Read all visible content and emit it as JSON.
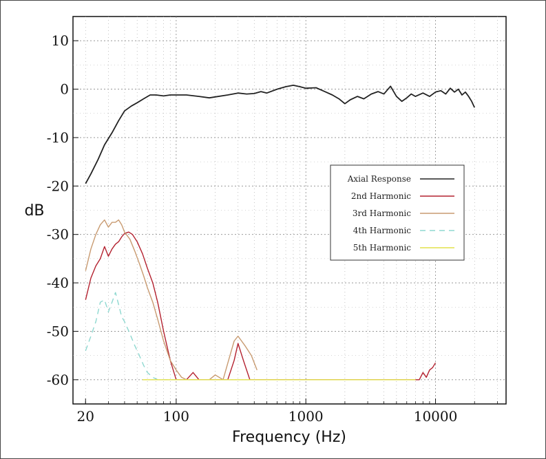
{
  "chart_data": {
    "type": "line",
    "title": "",
    "xlabel": "Frequency (Hz)",
    "ylabel": "dB",
    "x_scale": "log",
    "xlim": [
      16,
      35000
    ],
    "ylim": [
      -65,
      15
    ],
    "x_ticks": [
      20,
      100,
      1000,
      10000
    ],
    "x_tick_labels": [
      "20",
      "100",
      "1000",
      "10000"
    ],
    "y_ticks": [
      10,
      0,
      -10,
      -20,
      -30,
      -40,
      -50,
      -60
    ],
    "y_tick_labels": [
      "10",
      "0",
      "-10",
      "-20",
      "-30",
      "-40",
      "-50",
      "-60"
    ],
    "grid": true,
    "legend_position": "right",
    "series": [
      {
        "name": "Axial Response",
        "color": "#222222",
        "dash": "",
        "x": [
          20,
          22,
          25,
          28,
          32,
          36,
          40,
          45,
          50,
          56,
          63,
          70,
          80,
          90,
          100,
          120,
          150,
          180,
          200,
          250,
          300,
          350,
          400,
          450,
          500,
          600,
          700,
          800,
          900,
          1000,
          1200,
          1400,
          1600,
          1800,
          2000,
          2200,
          2500,
          2800,
          3200,
          3600,
          4000,
          4500,
          5000,
          5500,
          6000,
          6500,
          7000,
          8000,
          9000,
          10000,
          11000,
          12000,
          13000,
          14000,
          15000,
          16000,
          17000,
          18000,
          19000,
          20000
        ],
        "y": [
          -19.5,
          -17.5,
          -14.5,
          -11.5,
          -9,
          -6.5,
          -4.5,
          -3.5,
          -2.8,
          -2,
          -1.2,
          -1.2,
          -1.4,
          -1.2,
          -1.2,
          -1.2,
          -1.5,
          -1.8,
          -1.6,
          -1.2,
          -0.8,
          -1,
          -0.9,
          -0.5,
          -0.8,
          0,
          0.5,
          0.8,
          0.5,
          0.2,
          0.3,
          -0.5,
          -1.2,
          -2,
          -3,
          -2.2,
          -1.5,
          -2,
          -1,
          -0.5,
          -1,
          0.6,
          -1.5,
          -2.5,
          -1.8,
          -1,
          -1.5,
          -0.8,
          -1.5,
          -0.6,
          -0.3,
          -1,
          0.2,
          -0.6,
          0,
          -1.2,
          -0.6,
          -1.5,
          -2.5,
          -3.8
        ]
      },
      {
        "name": "2nd Harmonic",
        "color": "#b3202e",
        "dash": "",
        "x": [
          20,
          22,
          24,
          26,
          28,
          30,
          32,
          34,
          36,
          38,
          40,
          43,
          46,
          50,
          55,
          60,
          66,
          72,
          80,
          90,
          100,
          110,
          120,
          135,
          150,
          165,
          180,
          200,
          250,
          280,
          300,
          330,
          370,
          400,
          7500,
          8000,
          8500,
          9000,
          9500,
          10000
        ],
        "y": [
          -43.5,
          -39,
          -36.5,
          -35,
          -32.5,
          -34.5,
          -33,
          -32,
          -31.5,
          -30.5,
          -29.8,
          -29.5,
          -30,
          -31.5,
          -34,
          -37,
          -40,
          -44,
          -50,
          -56,
          -60,
          -60,
          -60,
          -58.5,
          -60,
          -60,
          -60,
          -60,
          -60,
          -56,
          -52.5,
          -56,
          -60,
          -60,
          -60,
          -58.5,
          -59.5,
          -58,
          -57.5,
          -56.5
        ]
      },
      {
        "name": "3rd Harmonic",
        "color": "#c89a70",
        "dash": "",
        "x": [
          20,
          22,
          24,
          26,
          28,
          30,
          32,
          34,
          36,
          38,
          40,
          44,
          48,
          52,
          56,
          60,
          66,
          72,
          80,
          90,
          100,
          110,
          120,
          140,
          160,
          180,
          200,
          230,
          260,
          280,
          300,
          340,
          380,
          420
        ],
        "y": [
          -37.5,
          -33,
          -30,
          -28,
          -27,
          -28.5,
          -27.5,
          -27.5,
          -27,
          -28,
          -29.5,
          -31,
          -33.5,
          -36,
          -38.5,
          -41,
          -44,
          -47.5,
          -52,
          -56,
          -58,
          -59.5,
          -60,
          -60,
          -60,
          -60,
          -59,
          -60,
          -55,
          -52,
          -51,
          -53,
          -55,
          -58
        ]
      },
      {
        "name": "4th Harmonic",
        "color": "#8ed8d0",
        "dash": "8,6",
        "x": [
          20,
          22,
          24,
          26,
          28,
          30,
          32,
          34,
          36,
          38,
          40,
          44,
          48,
          52,
          56,
          60,
          66,
          72,
          80,
          90,
          100
        ],
        "y": [
          -54,
          -51,
          -48,
          -44,
          -43.5,
          -46,
          -44,
          -42,
          -44.5,
          -47,
          -48,
          -50.5,
          -53,
          -55,
          -57,
          -58.5,
          -59.5,
          -60,
          -60,
          -60,
          -60
        ]
      },
      {
        "name": "5th Harmonic",
        "color": "#e2e04a",
        "dash": "",
        "x": [
          55,
          100,
          150,
          200,
          300,
          500,
          900,
          1000,
          2000,
          5000,
          7000
        ],
        "y": [
          -60,
          -60,
          -60,
          -60,
          -60,
          -60,
          -60,
          -60,
          -60,
          -60,
          -60
        ]
      }
    ]
  }
}
